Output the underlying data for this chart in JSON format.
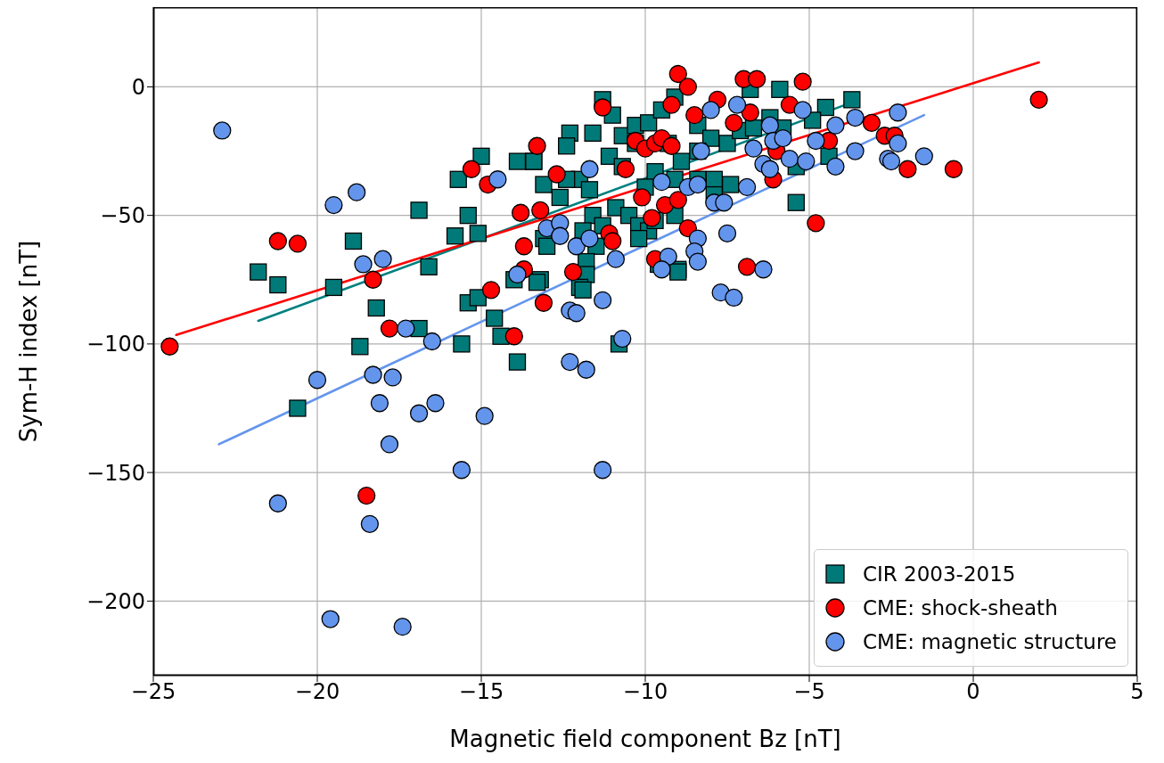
{
  "chart_data": {
    "type": "scatter",
    "xlabel": "Magnetic field component Bz [nT]",
    "ylabel": "Sym-H index [nT]",
    "xlim": [
      -25,
      5
    ],
    "ylim": [
      -229,
      31
    ],
    "xticks": [
      {
        "value": -25,
        "label": "−25"
      },
      {
        "value": -20,
        "label": "−20"
      },
      {
        "value": -15,
        "label": "−15"
      },
      {
        "value": -10,
        "label": "−10"
      },
      {
        "value": -5,
        "label": "−5"
      },
      0,
      5
    ],
    "yticks": [
      {
        "value": -200,
        "label": "−200"
      },
      {
        "value": -150,
        "label": "−150"
      },
      {
        "value": -100,
        "label": "−100"
      },
      {
        "value": -50,
        "label": "−50"
      },
      0
    ],
    "grid": true,
    "legend": "bottom right",
    "series": [
      {
        "name": "CIR 2003-2015",
        "type": "scatter",
        "marker": "square",
        "color": "#007a78",
        "x": [
          -21.8,
          -21.2,
          -19.5,
          -18.9,
          -18.7,
          -18.2,
          -16.9,
          -15.6,
          -16.6,
          -16.9,
          -15.7,
          -15,
          -15.4,
          -15.8,
          -15.1,
          -15.4,
          -15.1,
          -14.6,
          -20.6,
          -13.9,
          -13.4,
          -13.1,
          -11.3,
          -11,
          -12.3,
          -12.4,
          -11.6,
          -13.4,
          -12.6,
          -12,
          -11.7,
          -11.1,
          -10.7,
          -10.3,
          -9.9,
          -9.5,
          -9.1,
          -8.4,
          -8,
          -6.8,
          -5.9,
          -4.5,
          -3.7,
          -5.4,
          -9.3,
          -8.9,
          -8.4,
          -7.5,
          -7.1,
          -6.7,
          -6.2,
          -5.8,
          -4.9,
          -4.4,
          -5.4,
          -7.9,
          -7.4,
          -7.9,
          -10.9,
          -10.5,
          -10.2,
          -9.9,
          -9.7,
          -9.1,
          -11.6,
          -11.9,
          -13.1,
          -13,
          -11.3,
          -11.5,
          -11.8,
          -11.8,
          -13.2,
          -14,
          -12,
          -9,
          -10.2,
          -12.4,
          -9.7,
          -9.1,
          -10,
          -10.7,
          -10.3,
          -8.4,
          -14.4,
          -13.9,
          -13.3,
          -11.9,
          -10.8,
          -9,
          -9.6
        ],
        "values": [
          -72,
          -77,
          -78,
          -60,
          -101,
          -86,
          -94,
          -100,
          -70,
          -48,
          -36,
          -27,
          -50,
          -58,
          -57,
          -84,
          -82,
          -90,
          -125,
          -29,
          -29,
          -38,
          -5,
          -11,
          -18,
          -23,
          -18,
          -29,
          -43,
          -36,
          -40,
          -27,
          -19,
          -15,
          -14,
          -9,
          -4,
          -15,
          -20,
          -1,
          -1,
          -8,
          -5,
          -45,
          -22,
          -29,
          -25,
          -22,
          -17,
          -16,
          -12,
          -16,
          -13,
          -27,
          -31,
          -36,
          -38,
          -42,
          -47,
          -50,
          -54,
          -56,
          -52,
          -50,
          -50,
          -56,
          -59,
          -62,
          -54,
          -62,
          -68,
          -73,
          -75,
          -75,
          -78,
          -71,
          -59,
          -36,
          -33,
          -36,
          -39,
          -31,
          -22,
          -36,
          -97,
          -107,
          -76,
          -79,
          -100,
          -72,
          -69
        ]
      },
      {
        "name": "CME: shock-sheath",
        "type": "scatter",
        "marker": "circle",
        "color": "#ff0000",
        "x": [
          -24.5,
          -21.2,
          -20.6,
          -18.3,
          -17.8,
          -18.5,
          -15.3,
          -14.8,
          -14.7,
          -9,
          -8.7,
          -7,
          -6.6,
          -5.2,
          -11.3,
          -9.2,
          -8.5,
          -7.8,
          -7.3,
          -6.8,
          -5.6,
          -13.3,
          -12.7,
          -10.6,
          -10.3,
          -10,
          -9.7,
          -9.5,
          -9.2,
          -10.1,
          -9.4,
          -9,
          -9.8,
          -13.8,
          -13.2,
          -13.7,
          -11.1,
          -11,
          -12.2,
          -13.7,
          -13.1,
          -8.7,
          -9.7,
          -6.9,
          -6.1,
          -4.8,
          -4.4,
          -6,
          -14,
          -3.1,
          -2.7,
          -2.4,
          -2,
          -0.6,
          2
        ],
        "values": [
          -101,
          -60,
          -61,
          -75,
          -94,
          -159,
          -32,
          -38,
          -79,
          5,
          0,
          3,
          3,
          2,
          -8,
          -7,
          -11,
          -5,
          -14,
          -10,
          -7,
          -23,
          -34,
          -32,
          -21,
          -24,
          -22,
          -20,
          -23,
          -43,
          -46,
          -44,
          -51,
          -49,
          -48,
          -62,
          -57,
          -60,
          -72,
          -71,
          -84,
          -55,
          -67,
          -70,
          -36,
          -53,
          -21,
          -25,
          -97,
          -14,
          -19,
          -19,
          -32,
          -32,
          -5
        ]
      },
      {
        "name": "CME: magnetic structure",
        "type": "scatter",
        "marker": "circle",
        "color": "#6495ed",
        "x": [
          -22.9,
          -19.5,
          -18.8,
          -18.6,
          -18,
          -17.3,
          -16.5,
          -20,
          -18.3,
          -17.7,
          -18.1,
          -16.4,
          -16.9,
          -14.9,
          -17.8,
          -15.6,
          -11.3,
          -21.2,
          -18.4,
          -19.6,
          -17.4,
          -12.3,
          -11.8,
          -10.7,
          -14.5,
          -11.7,
          -13,
          -12.6,
          -12.6,
          -12.1,
          -11.7,
          -13.9,
          -10.9,
          -11.3,
          -12.3,
          -12.1,
          -8.3,
          -8,
          -7.2,
          -9.5,
          -8.7,
          -8.4,
          -7.9,
          -7.6,
          -6.9,
          -6.7,
          -6.4,
          -6.2,
          -6.2,
          -6.1,
          -5.8,
          -5.6,
          -5.2,
          -5.1,
          -4.8,
          -4.2,
          -4.2,
          -3.6,
          -3.6,
          -7.5,
          -8.4,
          -8.5,
          -8.4,
          -9.3,
          -9.5,
          -7.7,
          -7.3,
          -6.4,
          -2.3,
          -1.5,
          -2.3,
          -2.6,
          -2.5
        ],
        "values": [
          -17,
          -46,
          -41,
          -69,
          -67,
          -94,
          -99,
          -114,
          -112,
          -113,
          -123,
          -123,
          -127,
          -128,
          -139,
          -149,
          -149,
          -162,
          -170,
          -207,
          -210,
          -107,
          -110,
          -98,
          -36,
          -32,
          -55,
          -53,
          -58,
          -62,
          -59,
          -73,
          -67,
          -83,
          -87,
          -88,
          -25,
          -9,
          -7,
          -37,
          -39,
          -38,
          -45,
          -45,
          -39,
          -24,
          -30,
          -32,
          -15,
          -21,
          -20,
          -28,
          -9,
          -29,
          -21,
          -15,
          -31,
          -12,
          -25,
          -57,
          -59,
          -64,
          -68,
          -66,
          -71,
          -80,
          -82,
          -71,
          -10,
          -27,
          -22,
          -28,
          -29
        ]
      },
      {
        "type": "line",
        "color": "#008080",
        "x": [
          -21.8,
          -3.9
        ],
        "values": [
          -91,
          -7
        ]
      },
      {
        "type": "line",
        "color": "#ff0000",
        "x": [
          -24.3,
          2
        ],
        "values": [
          -96.5,
          9.5
        ]
      },
      {
        "type": "line",
        "color": "#6495ed",
        "x": [
          -23,
          -1.5
        ],
        "values": [
          -139,
          -11
        ]
      }
    ]
  }
}
